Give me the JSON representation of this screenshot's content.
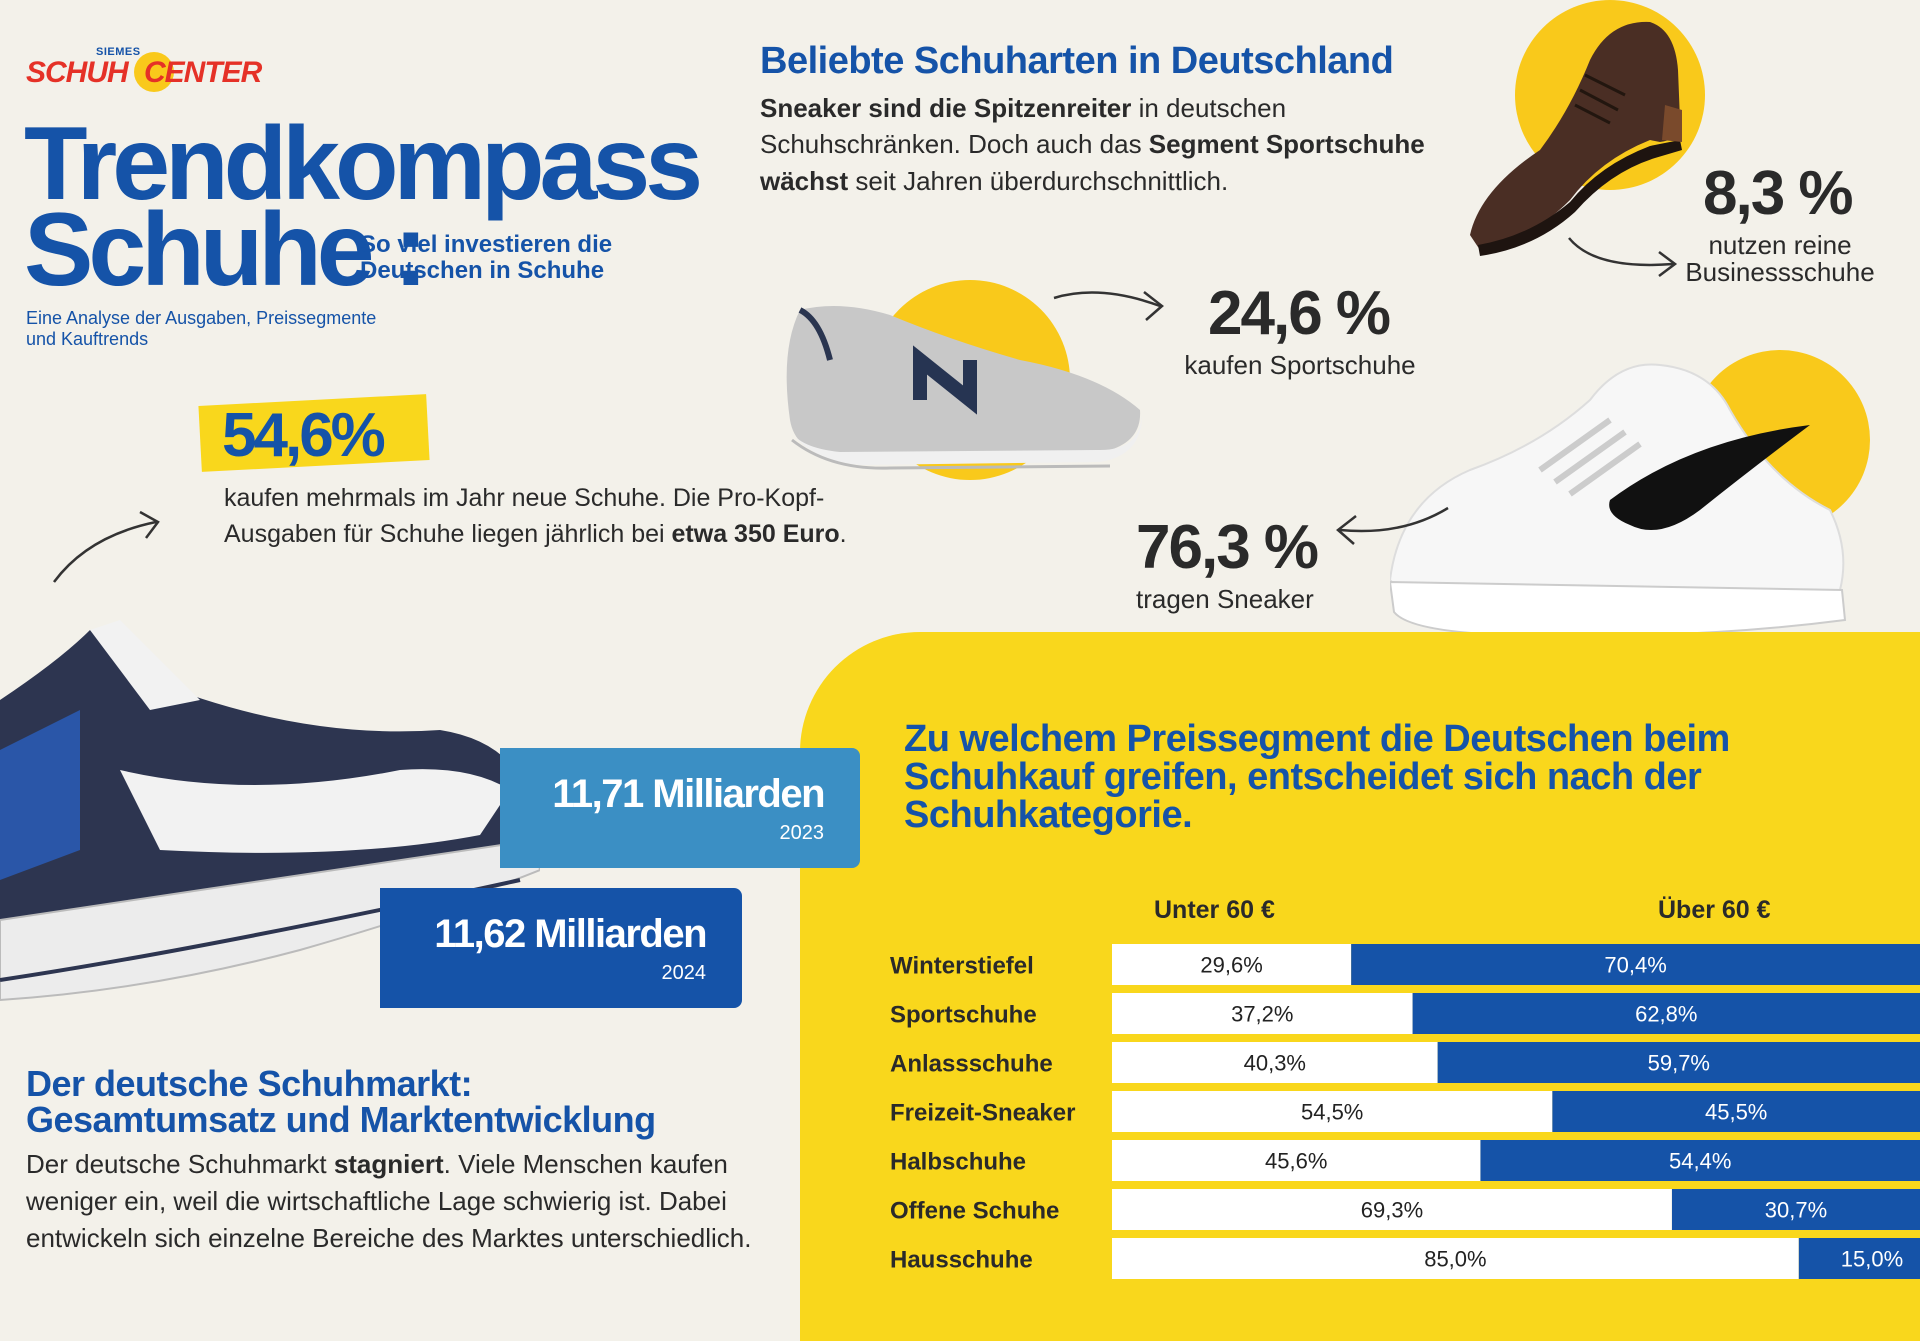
{
  "logo": {
    "top": "SIEMES",
    "left": "SCHUH",
    "right": "CENTER"
  },
  "header": {
    "title_line1": "Trendkompass",
    "title_line2": "Schuhe :",
    "subtitle": "So viel investieren die Deutschen in Schuhe",
    "analysis": "Eine Analyse der Ausgaben, Preissegmente und Kauftrends"
  },
  "highlight": {
    "value": "54,6%",
    "text_a": "kaufen mehrmals im Jahr neue Schuhe. Die Pro-Kopf-Ausgaben für Schuhe liegen jährlich bei ",
    "text_bold": "etwa 350 Euro",
    "text_end": "."
  },
  "popular": {
    "title": "Beliebte Schuharten in Deutschland",
    "text_b1": "Sneaker sind die Spitzenreiter",
    "text_a1": " in deutschen Schuhschränken. Doch auch das ",
    "text_b2": "Segment Sportschuhe wächst",
    "text_a2": " seit Jahren überdurchschnittlich."
  },
  "stats": {
    "business": {
      "value": "8,3 %",
      "caption_l1": "nutzen reine",
      "caption_l2": "Businessschuhe"
    },
    "sport": {
      "value": "24,6 %",
      "caption": "kaufen Sportschuhe"
    },
    "sneaker": {
      "value": "76,3 %",
      "caption": "tragen Sneaker"
    }
  },
  "revenue": {
    "y2023": {
      "value": "11,71 Milliarden",
      "year": "2023"
    },
    "y2024": {
      "value": "11,62 Milliarden",
      "year": "2024"
    }
  },
  "market": {
    "title_l1": "Der deutsche Schuhmarkt:",
    "title_l2": "Gesamtumsatz und Marktentwicklung",
    "text_a": "Der deutsche Schuhmarkt ",
    "text_bold": "stagniert",
    "text_b": ". Viele Menschen kaufen weniger ein, weil die wirtschaftliche Lage schwierig ist. Dabei entwickeln sich einzelne Bereiche des Marktes unterschiedlich."
  },
  "price_title": "Zu welchem Preissegment die Deutschen beim Schuhkauf greifen, entscheidet sich nach der Schuhkategorie.",
  "colors": {
    "blue": "#1553a8",
    "yellow": "#f9d71c",
    "light_blue": "#3b8fc4"
  },
  "chart_data": {
    "type": "bar",
    "stacked": true,
    "orientation": "horizontal",
    "categories": [
      "Winterstiefel",
      "Sportschuhe",
      "Anlassschuhe",
      "Freizeit-Sneaker",
      "Halbschuhe",
      "Offene Schuhe",
      "Hausschuhe"
    ],
    "series": [
      {
        "name": "Unter 60 €",
        "values": [
          29.6,
          37.2,
          40.3,
          54.5,
          45.6,
          69.3,
          85.0
        ],
        "labels": [
          "29,6%",
          "37,2%",
          "40,3%",
          "54,5%",
          "45,6%",
          "69,3%",
          "85,0%"
        ],
        "color": "#ffffff"
      },
      {
        "name": "Über 60 €",
        "values": [
          70.4,
          62.8,
          59.7,
          45.5,
          54.4,
          30.7,
          15.0
        ],
        "labels": [
          "70,4%",
          "62,8%",
          "59,7%",
          "45,5%",
          "54,4%",
          "30,7%",
          "15,0%"
        ],
        "color": "#1553a8"
      }
    ],
    "xlim": [
      0,
      100
    ]
  }
}
